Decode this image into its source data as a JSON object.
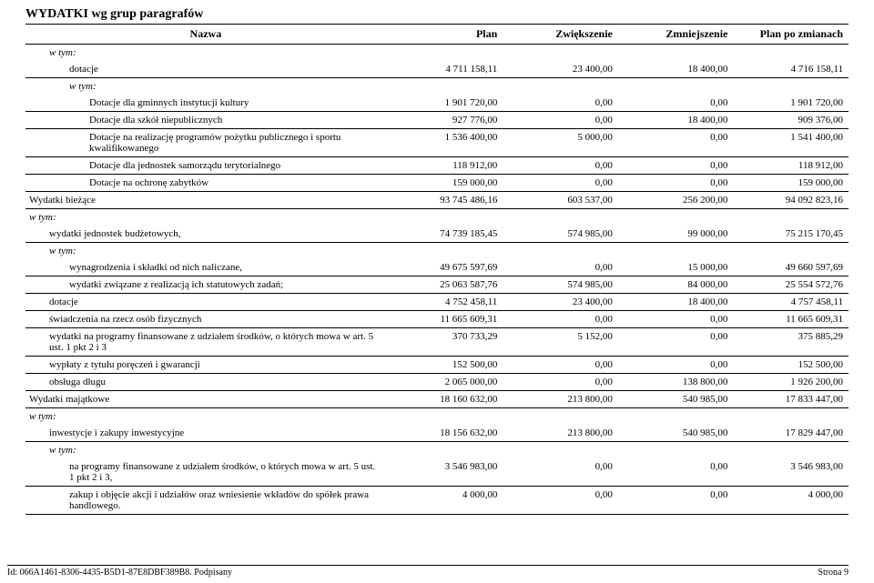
{
  "section_title": "WYDATKI wg grup paragrafów",
  "columns": {
    "name": "Nazwa",
    "plan": "Plan",
    "increase": "Zwiększenie",
    "decrease": "Zmniejszenie",
    "after": "Plan po zmianach"
  },
  "col_widths": {
    "name": "44%",
    "plan": "14%",
    "increase": "14%",
    "decrease": "14%",
    "after": "14%"
  },
  "wtym_label": "w tym:",
  "rows": [
    {
      "indent": 1,
      "wtym": true
    },
    {
      "indent": 2,
      "name": "dotacje",
      "plan": "4 711 158,11",
      "increase": "23 400,00",
      "decrease": "18 400,00",
      "after": "4 716 158,11"
    },
    {
      "indent": 2,
      "wtym": true
    },
    {
      "indent": 3,
      "name": "Dotacje dla gminnych instytucji kultury",
      "plan": "1 901 720,00",
      "increase": "0,00",
      "decrease": "0,00",
      "after": "1 901 720,00"
    },
    {
      "indent": 3,
      "name": "Dotacje dla szkół niepublicznych",
      "plan": "927 776,00",
      "increase": "0,00",
      "decrease": "18 400,00",
      "after": "909 376,00"
    },
    {
      "indent": 3,
      "name": "Dotacje na realizację programów pożytku publicznego i sportu kwalifikowanego",
      "plan": "1 536 400,00",
      "increase": "5 000,00",
      "decrease": "0,00",
      "after": "1 541 400,00"
    },
    {
      "indent": 3,
      "name": "Dotacje dla jednostek samorządu terytorialnego",
      "plan": "118 912,00",
      "increase": "0,00",
      "decrease": "0,00",
      "after": "118 912,00"
    },
    {
      "indent": 3,
      "name": "Dotacje na ochronę zabytków",
      "plan": "159 000,00",
      "increase": "0,00",
      "decrease": "0,00",
      "after": "159 000,00"
    },
    {
      "indent": 0,
      "name": "Wydatki bieżące",
      "plan": "93 745 486,16",
      "increase": "603 537,00",
      "decrease": "256 200,00",
      "after": "94 092 823,16"
    },
    {
      "indent": 0,
      "wtym": true
    },
    {
      "indent": 1,
      "name": "wydatki jednostek budżetowych,",
      "plan": "74 739 185,45",
      "increase": "574 985,00",
      "decrease": "99 000,00",
      "after": "75 215 170,45"
    },
    {
      "indent": 1,
      "wtym": true
    },
    {
      "indent": 2,
      "name": "wynagrodzenia i składki od nich naliczane,",
      "plan": "49 675 597,69",
      "increase": "0,00",
      "decrease": "15 000,00",
      "after": "49 660 597,69"
    },
    {
      "indent": 2,
      "name": "wydatki związane z realizacją ich statutowych zadań;",
      "plan": "25 063 587,76",
      "increase": "574 985,00",
      "decrease": "84 000,00",
      "after": "25 554 572,76"
    },
    {
      "indent": 1,
      "name": "dotacje",
      "plan": "4 752 458,11",
      "increase": "23 400,00",
      "decrease": "18 400,00",
      "after": "4 757 458,11"
    },
    {
      "indent": 1,
      "name": "świadczenia na rzecz osób fizycznych",
      "plan": "11 665 609,31",
      "increase": "0,00",
      "decrease": "0,00",
      "after": "11 665 609,31"
    },
    {
      "indent": 1,
      "name": "wydatki na programy finansowane z udziałem środków, o których mowa w art. 5 ust. 1 pkt 2 i 3",
      "plan": "370 733,29",
      "increase": "5 152,00",
      "decrease": "0,00",
      "after": "375 885,29"
    },
    {
      "indent": 1,
      "name": "wypłaty z tytułu poręczeń i gwarancji",
      "plan": "152 500,00",
      "increase": "0,00",
      "decrease": "0,00",
      "after": "152 500,00"
    },
    {
      "indent": 1,
      "name": "obsługa długu",
      "plan": "2 065 000,00",
      "increase": "0,00",
      "decrease": "138 800,00",
      "after": "1 926 200,00"
    },
    {
      "indent": 0,
      "name": "Wydatki majątkowe",
      "plan": "18 160 632,00",
      "increase": "213 800,00",
      "decrease": "540 985,00",
      "after": "17 833 447,00"
    },
    {
      "indent": 0,
      "wtym": true
    },
    {
      "indent": 1,
      "name": "inwestycje i zakupy inwestycyjne",
      "plan": "18 156 632,00",
      "increase": "213 800,00",
      "decrease": "540 985,00",
      "after": "17 829 447,00"
    },
    {
      "indent": 1,
      "wtym": true
    },
    {
      "indent": 2,
      "name": "na programy finansowane z udziałem środków, o których mowa w art. 5 ust. 1 pkt 2 i 3,",
      "plan": "3 546 983,00",
      "increase": "0,00",
      "decrease": "0,00",
      "after": "3 546 983,00"
    },
    {
      "indent": 2,
      "name": "zakup i objęcie akcji i udziałów oraz wniesienie wkładów do spółek prawa handlowego.",
      "plan": "4 000,00",
      "increase": "0,00",
      "decrease": "0,00",
      "after": "4 000,00"
    }
  ],
  "footer": {
    "left": "Id: 066A1461-8306-4435-B5D1-87E8DBF389B8. Podpisany",
    "right": "Strona 9"
  },
  "colors": {
    "text": "#000000",
    "background": "#ffffff",
    "rule": "#000000"
  }
}
